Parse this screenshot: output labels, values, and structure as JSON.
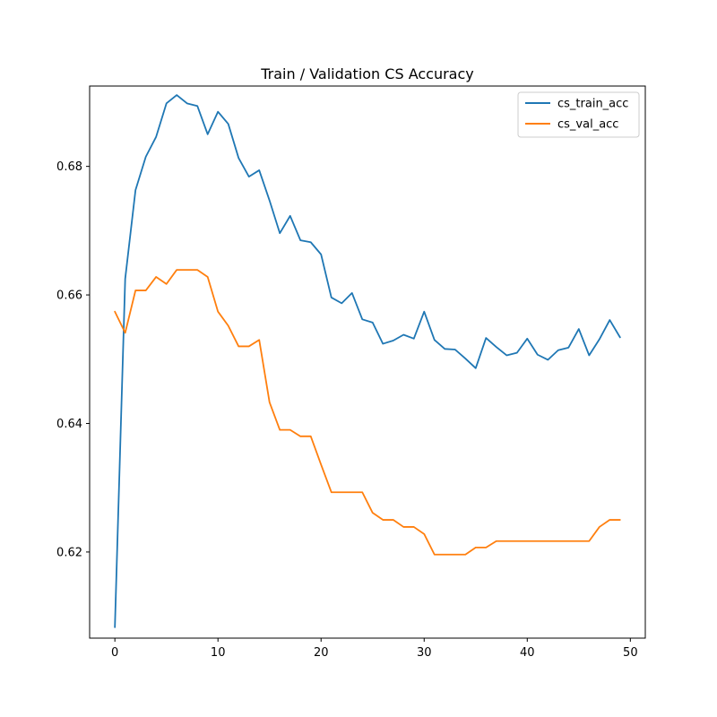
{
  "chart_data": {
    "type": "line",
    "title": "Train / Validation CS Accuracy",
    "xlabel": "",
    "ylabel": "",
    "xlim": [
      -2.45,
      51.45
    ],
    "ylim": [
      0.6066,
      0.6925
    ],
    "xticks": [
      0,
      10,
      20,
      30,
      40,
      50
    ],
    "yticks": [
      0.62,
      0.64,
      0.66,
      0.68
    ],
    "ytick_labels": [
      "0.62",
      "0.64",
      "0.66",
      "0.68"
    ],
    "grid": false,
    "legend_position": "top-right",
    "x": [
      0,
      1,
      2,
      3,
      4,
      5,
      6,
      7,
      8,
      9,
      10,
      11,
      12,
      13,
      14,
      15,
      16,
      17,
      18,
      19,
      20,
      21,
      22,
      23,
      24,
      25,
      26,
      27,
      28,
      29,
      30,
      31,
      32,
      33,
      34,
      35,
      36,
      37,
      38,
      39,
      40,
      41,
      42,
      43,
      44,
      45,
      46,
      47,
      48,
      49
    ],
    "series": [
      {
        "name": "cs_train_acc",
        "color": "#1f77b4",
        "values": [
          0.6083,
          0.6625,
          0.6763,
          0.6815,
          0.6846,
          0.6898,
          0.6911,
          0.6898,
          0.6894,
          0.685,
          0.6885,
          0.6866,
          0.6813,
          0.6784,
          0.6794,
          0.6747,
          0.6696,
          0.6723,
          0.6685,
          0.6682,
          0.6663,
          0.6596,
          0.6587,
          0.6603,
          0.6562,
          0.6557,
          0.6524,
          0.6529,
          0.6538,
          0.6532,
          0.6574,
          0.653,
          0.6516,
          0.6515,
          0.6501,
          0.6486,
          0.6533,
          0.6519,
          0.6506,
          0.651,
          0.6532,
          0.6507,
          0.6499,
          0.6514,
          0.6518,
          0.6547,
          0.6506,
          0.6531,
          0.6561,
          0.6534
        ]
      },
      {
        "name": "cs_val_acc",
        "color": "#ff7f0e",
        "values": [
          0.6574,
          0.6541,
          0.6607,
          0.6607,
          0.6628,
          0.6617,
          0.6639,
          0.6639,
          0.6639,
          0.6628,
          0.6574,
          0.6552,
          0.652,
          0.652,
          0.653,
          0.6433,
          0.639,
          0.639,
          0.638,
          0.638,
          0.6336,
          0.6293,
          0.6293,
          0.6293,
          0.6293,
          0.6261,
          0.625,
          0.625,
          0.6239,
          0.6239,
          0.6228,
          0.6196,
          0.6196,
          0.6196,
          0.6196,
          0.6207,
          0.6207,
          0.6217,
          0.6217,
          0.6217,
          0.6217,
          0.6217,
          0.6217,
          0.6217,
          0.6217,
          0.6217,
          0.6217,
          0.6239,
          0.625,
          0.625
        ]
      }
    ]
  }
}
